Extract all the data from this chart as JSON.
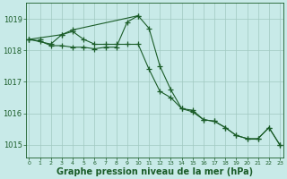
{
  "background_color": "#c8eae8",
  "grid_color": "#a0c8c0",
  "line_color": "#1a5c28",
  "xlabel": "Graphe pression niveau de la mer (hPa)",
  "xlabel_fontsize": 7,
  "yticks": [
    1015,
    1016,
    1017,
    1018,
    1019
  ],
  "xticks": [
    0,
    1,
    2,
    3,
    4,
    5,
    6,
    7,
    8,
    9,
    10,
    11,
    12,
    13,
    14,
    15,
    16,
    17,
    18,
    19,
    20,
    21,
    22,
    23
  ],
  "xlim": [
    -0.3,
    23.3
  ],
  "ylim": [
    1014.6,
    1019.5
  ],
  "series1": [
    1018.35,
    1018.35,
    null,
    1018.5,
    1018.65,
    null,
    null,
    null,
    null,
    null,
    1019.1,
    null,
    null,
    null,
    null,
    null,
    null,
    null,
    null,
    null,
    null,
    null,
    null,
    null
  ],
  "series2": [
    1018.35,
    null,
    1018.2,
    1018.5,
    1018.6,
    1018.35,
    1018.2,
    1018.2,
    1018.2,
    1018.2,
    1018.2,
    1017.4,
    1016.7,
    1016.5,
    1016.15,
    1016.05,
    1015.8,
    1015.75,
    1015.55,
    1015.3,
    1015.2,
    1015.2,
    1015.55,
    1015.0
  ],
  "series3": [
    1018.35,
    1018.3,
    1018.15,
    1018.15,
    1018.1,
    1018.1,
    1018.05,
    1018.1,
    1018.1,
    1018.9,
    1019.1,
    1018.7,
    1017.5,
    1016.75,
    1016.15,
    1016.1,
    1015.8,
    1015.75,
    1015.55,
    1015.3,
    1015.2,
    1015.2,
    1015.55,
    1015.0
  ]
}
